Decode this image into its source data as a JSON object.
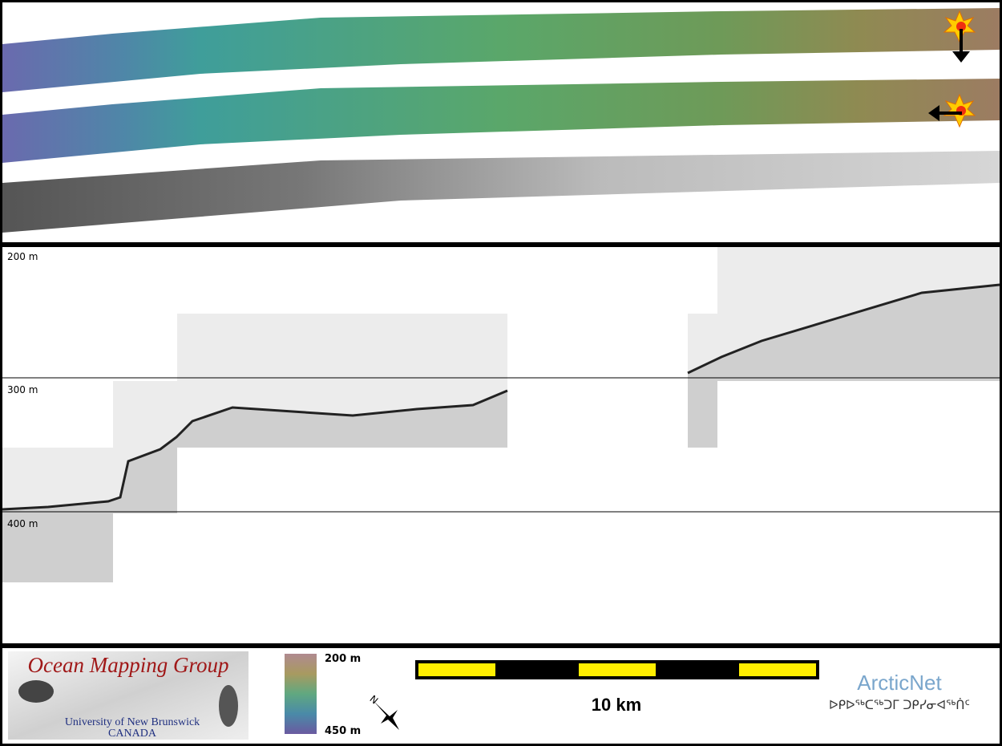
{
  "profile": {
    "depth_labels": [
      "200 m",
      "300 m",
      "400 m"
    ]
  },
  "footer": {
    "logo": {
      "title": "Ocean Mapping Group",
      "university": "University of New Brunswick",
      "country": "CANADA"
    },
    "color_scale": {
      "top": "200 m",
      "bottom": "450 m"
    },
    "north": "N",
    "scale_bar": "10 km",
    "partner": {
      "name": "ArcticNet",
      "subtitle": "ᐅᑭᐅᖅᑕᖅᑐᒥ ᑐᑭᓯᓂᐊᖅᑏᑦ"
    }
  }
}
